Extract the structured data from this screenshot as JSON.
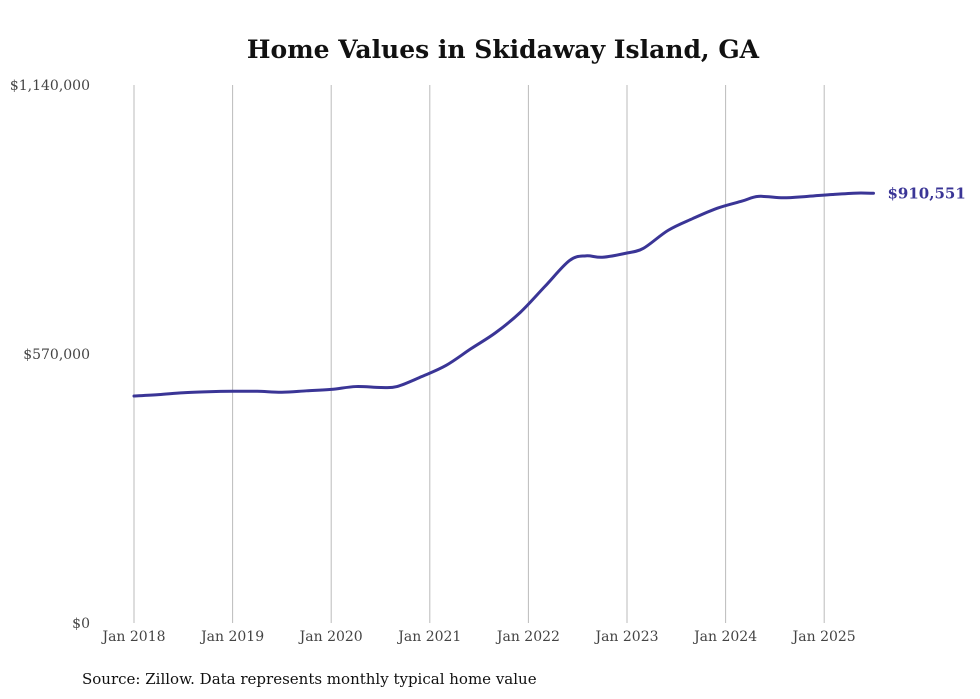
{
  "chart_data": {
    "type": "line",
    "title": "Home Values in Skidaway Island, GA",
    "xlabel": "",
    "ylabel": "",
    "ylim": [
      0,
      1140000
    ],
    "y_ticks": [
      "$0",
      "$570,000",
      "$1,140,000"
    ],
    "y_tick_values": [
      0,
      570000,
      1140000
    ],
    "x_ticks": [
      "Jan 2018",
      "Jan 2019",
      "Jan 2020",
      "Jan 2021",
      "Jan 2022",
      "Jan 2023",
      "Jan 2024",
      "Jan 2025"
    ],
    "grid": "vertical",
    "series": [
      {
        "name": "Typical home value",
        "color": "#3a3596",
        "end_label": "$910,551",
        "x": [
          "2018-01",
          "2018-04",
          "2018-07",
          "2018-10",
          "2019-01",
          "2019-04",
          "2019-07",
          "2019-10",
          "2020-01",
          "2020-04",
          "2020-07",
          "2020-09",
          "2020-12",
          "2021-03",
          "2021-06",
          "2021-09",
          "2021-12",
          "2022-03",
          "2022-06",
          "2022-08",
          "2022-10",
          "2023-01",
          "2023-03",
          "2023-06",
          "2023-09",
          "2023-12",
          "2024-03",
          "2024-05",
          "2024-08",
          "2024-11",
          "2025-02",
          "2025-05",
          "2025-07"
        ],
        "values": [
          481000,
          484000,
          488000,
          490000,
          491000,
          491000,
          489000,
          492000,
          495000,
          501000,
          499000,
          501000,
          522000,
          546000,
          581000,
          615000,
          658000,
          713000,
          768000,
          778000,
          775000,
          784000,
          794000,
          832000,
          857000,
          879000,
          894000,
          904000,
          901000,
          904000,
          908000,
          911000,
          910551
        ]
      }
    ]
  },
  "footer": {
    "source": "Source: Zillow. Data represents monthly typical home value"
  }
}
